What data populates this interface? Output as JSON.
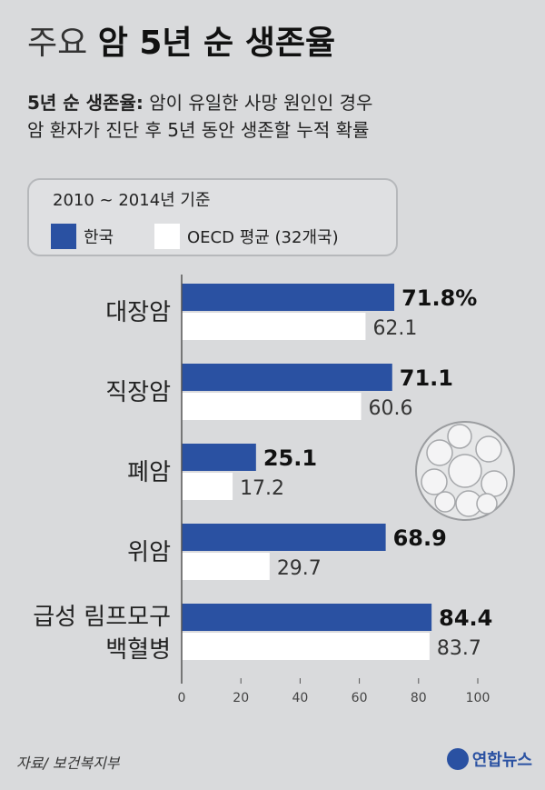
{
  "header": {
    "title_light": "주요",
    "title_bold": "암 5년 순 생존율",
    "desc_term": "5년 순 생존율:",
    "desc_line1": "암이 유일한 사망 원인인 경우",
    "desc_line2": "암 환자가 진단 후 5년 동안 생존할 누적 확률"
  },
  "legend": {
    "period": "2010 ~ 2014년 기준",
    "korea": "한국",
    "oecd": "OECD 평균 (32개국)"
  },
  "colors": {
    "korea": "#2a51a2",
    "oecd": "#ffffff",
    "background": "#d9dadc"
  },
  "chart_data": {
    "type": "bar",
    "orientation": "horizontal",
    "categories": [
      [
        "대장암"
      ],
      [
        "직장암"
      ],
      [
        "폐암"
      ],
      [
        "위암"
      ],
      [
        "급성 림프모구",
        "백혈병"
      ]
    ],
    "series": [
      {
        "name": "한국",
        "values": [
          71.8,
          71.1,
          25.1,
          68.9,
          84.4
        ],
        "labels": [
          "71.8%",
          "71.1",
          "25.1",
          "68.9",
          "84.4"
        ]
      },
      {
        "name": "OECD 평균 (32개국)",
        "values": [
          62.1,
          60.6,
          17.2,
          29.7,
          83.7
        ],
        "labels": [
          "62.1",
          "60.6",
          "17.2",
          "29.7",
          "83.7"
        ]
      }
    ],
    "xlim": [
      0,
      100
    ],
    "xticks": [
      "0",
      "20",
      "40",
      "60",
      "80",
      "100"
    ],
    "grid": false
  },
  "footer": {
    "source": "자료/ 보건복지부",
    "logo": "연합뉴스"
  }
}
